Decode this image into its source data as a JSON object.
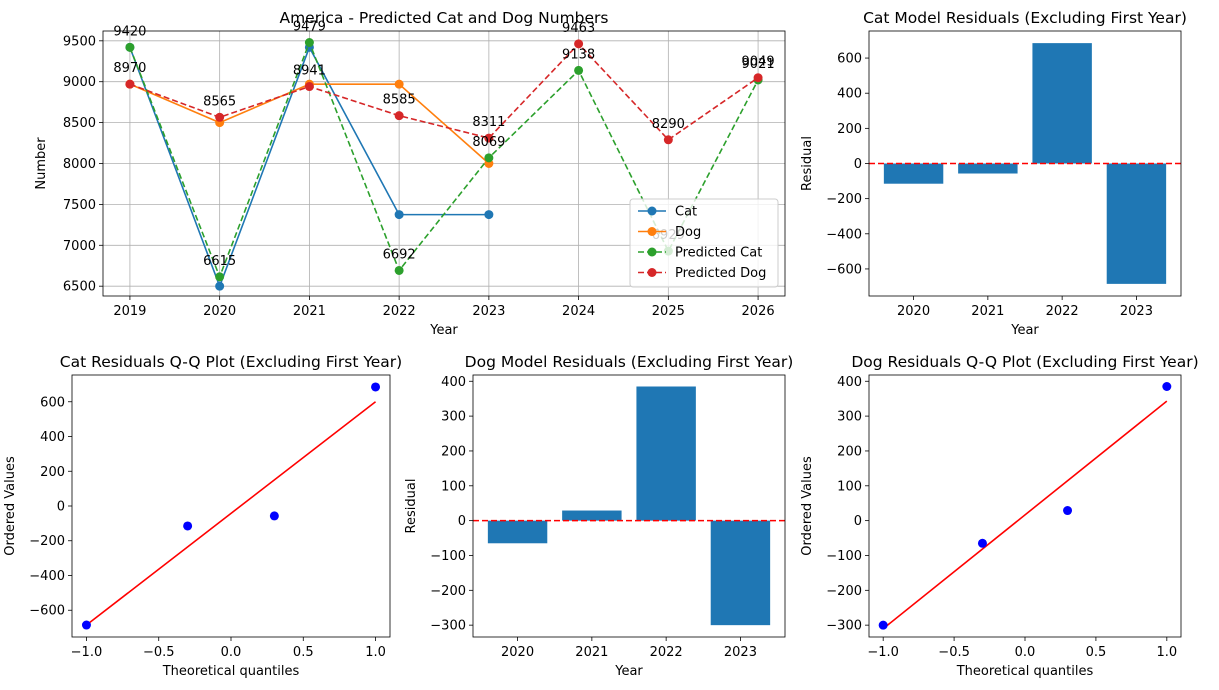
{
  "chart_data": [
    {
      "type": "line",
      "title": "America - Predicted Cat and Dog Numbers",
      "xlabel": "Year",
      "ylabel": "Number",
      "xlim": [
        2018.7,
        2026.3
      ],
      "ylim": [
        6380,
        9620
      ],
      "xticks": [
        2019,
        2020,
        2021,
        2022,
        2023,
        2024,
        2025,
        2026
      ],
      "yticks": [
        6500,
        7000,
        7500,
        8000,
        8500,
        9000,
        9500
      ],
      "grid": true,
      "legend_position": "lower-right",
      "series": [
        {
          "name": "Cat",
          "color": "#1f77b4",
          "style": "solid",
          "x": [
            2019,
            2020,
            2021,
            2022,
            2023
          ],
          "y": [
            9420,
            6500,
            9420,
            7375,
            7375
          ]
        },
        {
          "name": "Dog",
          "color": "#ff7f0e",
          "style": "solid",
          "x": [
            2019,
            2020,
            2021,
            2022,
            2023
          ],
          "y": [
            8970,
            8500,
            8970,
            8970,
            8000
          ]
        },
        {
          "name": "Predicted Cat",
          "color": "#2ca02c",
          "style": "dashed",
          "x": [
            2019,
            2020,
            2021,
            2022,
            2023,
            2024,
            2025,
            2026
          ],
          "y": [
            9420,
            6615,
            9479,
            6692,
            8069,
            9138,
            6929,
            9021
          ]
        },
        {
          "name": "Predicted Dog",
          "color": "#d62728",
          "style": "dashed",
          "x": [
            2019,
            2020,
            2021,
            2022,
            2023,
            2024,
            2025,
            2026
          ],
          "y": [
            8970,
            8565,
            8941,
            8585,
            8311,
            9463,
            8290,
            9049
          ]
        }
      ],
      "annotations": [
        {
          "text": "9420",
          "x": 2019,
          "y": 9420
        },
        {
          "text": "8970",
          "x": 2019,
          "y": 8970
        },
        {
          "text": "6615",
          "x": 2020,
          "y": 6615
        },
        {
          "text": "8565",
          "x": 2020,
          "y": 8565
        },
        {
          "text": "9479",
          "x": 2021,
          "y": 9479
        },
        {
          "text": "8941",
          "x": 2021,
          "y": 8941
        },
        {
          "text": "6692",
          "x": 2022,
          "y": 6692
        },
        {
          "text": "8585",
          "x": 2022,
          "y": 8585
        },
        {
          "text": "8069",
          "x": 2023,
          "y": 8069
        },
        {
          "text": "8311",
          "x": 2023,
          "y": 8311
        },
        {
          "text": "9138",
          "x": 2024,
          "y": 9138
        },
        {
          "text": "9463",
          "x": 2024,
          "y": 9463
        },
        {
          "text": "6929",
          "x": 2025,
          "y": 6929
        },
        {
          "text": "8290",
          "x": 2025,
          "y": 8290
        },
        {
          "text": "9021",
          "x": 2026,
          "y": 9021
        },
        {
          "text": "9049",
          "x": 2026,
          "y": 9049
        }
      ]
    },
    {
      "type": "bar",
      "title": "Cat Model Residuals (Excluding First Year)",
      "xlabel": "Year",
      "ylabel": "Residual",
      "categories": [
        "2020",
        "2021",
        "2022",
        "2023"
      ],
      "values": [
        -115,
        -57,
        685,
        -685
      ],
      "color": "#1f77b4",
      "ylim": [
        -754,
        754
      ],
      "yticks": [
        -600,
        -400,
        -200,
        0,
        200,
        400,
        600
      ],
      "zero_line": {
        "y": 0,
        "color": "#ff0000",
        "style": "dashed"
      },
      "grid": false
    },
    {
      "type": "scatter",
      "title": "Cat Residuals Q-Q Plot (Excluding First Year)",
      "xlabel": "Theoretical quantiles",
      "ylabel": "Ordered Values",
      "x": [
        -1.0,
        -0.3,
        0.3,
        1.0
      ],
      "y": [
        -685,
        -115,
        -57,
        685
      ],
      "point_color": "#0000ff",
      "fit_line": {
        "x": [
          -1.0,
          1.0
        ],
        "y": [
          -685,
          600
        ],
        "color": "#ff0000"
      },
      "xlim": [
        -1.1,
        1.1
      ],
      "ylim": [
        -754,
        754
      ],
      "xticks": [
        -1.0,
        -0.5,
        0.0,
        0.5,
        1.0
      ],
      "xtick_labels": [
        "−1.0",
        "−0.5",
        "0.0",
        "0.5",
        "1.0"
      ],
      "yticks": [
        -600,
        -400,
        -200,
        0,
        200,
        400,
        600
      ],
      "grid": false
    },
    {
      "type": "bar",
      "title": "Dog Model Residuals (Excluding First Year)",
      "xlabel": "Year",
      "ylabel": "Residual",
      "categories": [
        "2020",
        "2021",
        "2022",
        "2023"
      ],
      "values": [
        -65,
        29,
        385,
        -300
      ],
      "color": "#1f77b4",
      "ylim": [
        -334,
        418
      ],
      "yticks": [
        -300,
        -200,
        -100,
        0,
        100,
        200,
        300,
        400
      ],
      "zero_line": {
        "y": 0,
        "color": "#ff0000",
        "style": "dashed"
      },
      "grid": false
    },
    {
      "type": "scatter",
      "title": "Dog Residuals Q-Q Plot (Excluding First Year)",
      "xlabel": "Theoretical quantiles",
      "ylabel": "Ordered Values",
      "x": [
        -1.0,
        -0.3,
        0.3,
        1.0
      ],
      "y": [
        -300,
        -65,
        29,
        385
      ],
      "point_color": "#0000ff",
      "fit_line": {
        "x": [
          -1.0,
          1.0
        ],
        "y": [
          -310,
          343
        ],
        "color": "#ff0000"
      },
      "xlim": [
        -1.1,
        1.1
      ],
      "ylim": [
        -334,
        418
      ],
      "xticks": [
        -1.0,
        -0.5,
        0.0,
        0.5,
        1.0
      ],
      "xtick_labels": [
        "−1.0",
        "−0.5",
        "0.0",
        "0.5",
        "1.0"
      ],
      "yticks": [
        -300,
        -200,
        -100,
        0,
        100,
        200,
        300,
        400
      ],
      "grid": false
    }
  ]
}
